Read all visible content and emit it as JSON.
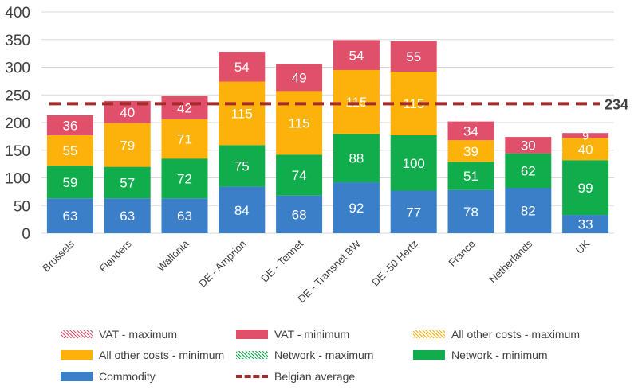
{
  "colors": {
    "commodity": "#3a7fc8",
    "network": "#11ad4c",
    "other": "#fcb20b",
    "vat": "#e0506a",
    "average": "#a52a2a",
    "grid": "#d9d9d9",
    "text": "#404040"
  },
  "chart_data": {
    "type": "bar",
    "stacked": true,
    "categories": [
      "Brussels",
      "Flanders",
      "Wallonia",
      "DE - Amprion",
      "DE - Tennet",
      "DE - Transnet BW",
      "DE -50 Hertz",
      "France",
      "Netherlands",
      "UK"
    ],
    "ylim": [
      0,
      400
    ],
    "yticks": [
      0,
      50,
      100,
      150,
      200,
      250,
      300,
      350,
      400
    ],
    "ytick_labels": [
      "0",
      "50",
      "100",
      "150",
      "200",
      "250",
      "300",
      "350",
      "400"
    ],
    "grid": true,
    "series": [
      {
        "name": "Commodity",
        "key": "commodity",
        "values": [
          63,
          63,
          63,
          84,
          68,
          92,
          77,
          78,
          82,
          33
        ]
      },
      {
        "name": "Network - minimum",
        "key": "network",
        "values": [
          59,
          57,
          72,
          75,
          74,
          88,
          100,
          51,
          62,
          99
        ]
      },
      {
        "name": "All other costs - minimum",
        "key": "other",
        "values": [
          55,
          79,
          71,
          115,
          115,
          115,
          115,
          39,
          0,
          40
        ]
      },
      {
        "name": "VAT - minimum",
        "key": "vat",
        "values": [
          36,
          40,
          42,
          54,
          49,
          54,
          55,
          34,
          30,
          9
        ]
      }
    ],
    "value_labels": {
      "commodity": [
        "63",
        "63",
        "63",
        "84",
        "68",
        "92",
        "77",
        "78",
        "82",
        "33"
      ],
      "network": [
        "59",
        "57",
        "72",
        "75",
        "74",
        "88",
        "100",
        "51",
        "62",
        "99"
      ],
      "other": [
        "55",
        "79",
        "71",
        "115",
        "115",
        "115",
        "115",
        "39",
        "",
        "40"
      ],
      "vat": [
        "36",
        "40",
        "42",
        "54",
        "49",
        "54",
        "55",
        "34",
        "30",
        "9"
      ]
    },
    "belgian_average": {
      "name": "Belgian average",
      "value": 234,
      "label": "234"
    },
    "legend": [
      {
        "label": "VAT - maximum",
        "style": "hatch",
        "color": "#e0506a"
      },
      {
        "label": "VAT - minimum",
        "style": "fill",
        "color": "#e0506a"
      },
      {
        "label": "All other costs - maximum",
        "style": "hatch",
        "color": "#fcb20b"
      },
      {
        "label": "All other costs - minimum",
        "style": "fill",
        "color": "#fcb20b"
      },
      {
        "label": "Network - maximum",
        "style": "hatch",
        "color": "#11ad4c"
      },
      {
        "label": "Network - minimum",
        "style": "fill",
        "color": "#11ad4c"
      },
      {
        "label": "Commodity",
        "style": "fill",
        "color": "#3a7fc8"
      },
      {
        "label": "Belgian average",
        "style": "dash",
        "color": "#a52a2a"
      }
    ],
    "legend_position": "bottom"
  }
}
